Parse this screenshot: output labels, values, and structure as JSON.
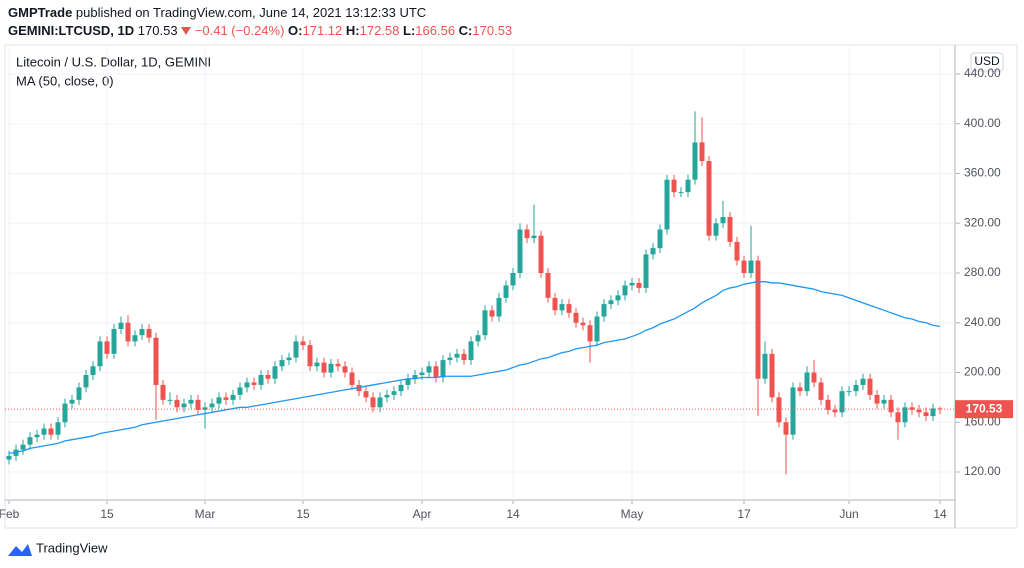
{
  "header": {
    "author": "GMPTrade",
    "published": "published on TradingView.com, June 14, 2021 13:12:33 UTC",
    "symbol": "GEMINI:LTCUSD, 1D",
    "change": "−0.41 (−0.24%)",
    "ohlc_labels": [
      "O:",
      "H:",
      "L:",
      "C:"
    ]
  },
  "footer": {
    "brand": "TradingView"
  },
  "chart_data": {
    "type": "candlestick",
    "title": "Litecoin / U.S. Dollar, 1D, GEMINI",
    "currency": "USD",
    "up_color": "#26a69a",
    "down_color": "#ef5350",
    "grid": true,
    "ylim": [
      97.5,
      463.3
    ],
    "yticks": [
      {
        "value": 120,
        "label": "120.00"
      },
      {
        "value": 160,
        "label": "160.00"
      },
      {
        "value": 200,
        "label": "200.00"
      },
      {
        "value": 240,
        "label": "240.00"
      },
      {
        "value": 280,
        "label": "280.00"
      },
      {
        "value": 320,
        "label": "320.00"
      },
      {
        "value": 360,
        "label": "360.00"
      },
      {
        "value": 400,
        "label": "400.00"
      },
      {
        "value": 440,
        "label": "440.00"
      }
    ],
    "xticks": [
      {
        "value": "2021-02-01",
        "label": "Feb"
      },
      {
        "value": "2021-02-15",
        "label": "15"
      },
      {
        "value": "2021-03-01",
        "label": "Mar"
      },
      {
        "value": "2021-03-15",
        "label": "15"
      },
      {
        "value": "2021-04-01",
        "label": "Apr"
      },
      {
        "value": "2021-04-14",
        "label": "14"
      },
      {
        "value": "2021-05-01",
        "label": "May"
      },
      {
        "value": "2021-05-17",
        "label": "17"
      },
      {
        "value": "2021-06-01",
        "label": "Jun"
      },
      {
        "value": "2021-06-14",
        "label": "14"
      }
    ],
    "categories": [
      "2021-02-01",
      "2021-02-02",
      "2021-02-03",
      "2021-02-04",
      "2021-02-05",
      "2021-02-06",
      "2021-02-07",
      "2021-02-08",
      "2021-02-09",
      "2021-02-10",
      "2021-02-11",
      "2021-02-12",
      "2021-02-13",
      "2021-02-14",
      "2021-02-15",
      "2021-02-16",
      "2021-02-17",
      "2021-02-18",
      "2021-02-19",
      "2021-02-20",
      "2021-02-21",
      "2021-02-22",
      "2021-02-23",
      "2021-02-24",
      "2021-02-25",
      "2021-02-26",
      "2021-02-27",
      "2021-02-28",
      "2021-03-01",
      "2021-03-02",
      "2021-03-03",
      "2021-03-04",
      "2021-03-05",
      "2021-03-06",
      "2021-03-07",
      "2021-03-08",
      "2021-03-09",
      "2021-03-10",
      "2021-03-11",
      "2021-03-12",
      "2021-03-13",
      "2021-03-14",
      "2021-03-15",
      "2021-03-16",
      "2021-03-17",
      "2021-03-18",
      "2021-03-19",
      "2021-03-20",
      "2021-03-21",
      "2021-03-22",
      "2021-03-23",
      "2021-03-24",
      "2021-03-25",
      "2021-03-26",
      "2021-03-27",
      "2021-03-28",
      "2021-03-29",
      "2021-03-30",
      "2021-03-31",
      "2021-04-01",
      "2021-04-02",
      "2021-04-03",
      "2021-04-04",
      "2021-04-05",
      "2021-04-06",
      "2021-04-07",
      "2021-04-08",
      "2021-04-09",
      "2021-04-10",
      "2021-04-11",
      "2021-04-12",
      "2021-04-13",
      "2021-04-14",
      "2021-04-15",
      "2021-04-16",
      "2021-04-17",
      "2021-04-18",
      "2021-04-19",
      "2021-04-20",
      "2021-04-21",
      "2021-04-22",
      "2021-04-23",
      "2021-04-24",
      "2021-04-25",
      "2021-04-26",
      "2021-04-27",
      "2021-04-28",
      "2021-04-29",
      "2021-04-30",
      "2021-05-01",
      "2021-05-02",
      "2021-05-03",
      "2021-05-04",
      "2021-05-05",
      "2021-05-06",
      "2021-05-07",
      "2021-05-08",
      "2021-05-09",
      "2021-05-10",
      "2021-05-11",
      "2021-05-12",
      "2021-05-13",
      "2021-05-14",
      "2021-05-15",
      "2021-05-16",
      "2021-05-17",
      "2021-05-18",
      "2021-05-19",
      "2021-05-20",
      "2021-05-21",
      "2021-05-22",
      "2021-05-23",
      "2021-05-24",
      "2021-05-25",
      "2021-05-26",
      "2021-05-27",
      "2021-05-28",
      "2021-05-29",
      "2021-05-30",
      "2021-05-31",
      "2021-06-01",
      "2021-06-02",
      "2021-06-03",
      "2021-06-04",
      "2021-06-05",
      "2021-06-06",
      "2021-06-07",
      "2021-06-08",
      "2021-06-09",
      "2021-06-10",
      "2021-06-11",
      "2021-06-12",
      "2021-06-13",
      "2021-06-14"
    ],
    "open": [
      130,
      133,
      138,
      142,
      148,
      150,
      155,
      150,
      160,
      175,
      178,
      188,
      198,
      205,
      225,
      215,
      235,
      240,
      225,
      230,
      235,
      228,
      190,
      178,
      178,
      172,
      175,
      178,
      170,
      172,
      175,
      180,
      178,
      182,
      188,
      192,
      190,
      198,
      195,
      205,
      210,
      212,
      225,
      222,
      205,
      208,
      200,
      207,
      205,
      200,
      190,
      185,
      180,
      172,
      180,
      182,
      185,
      190,
      195,
      198,
      200,
      205,
      196,
      210,
      212,
      215,
      210,
      225,
      230,
      250,
      245,
      260,
      270,
      280,
      315,
      308,
      310,
      280,
      260,
      250,
      255,
      248,
      240,
      238,
      225,
      245,
      255,
      258,
      262,
      270,
      272,
      268,
      295,
      300,
      315,
      355,
      345,
      345,
      355,
      385,
      370,
      310,
      320,
      325,
      305,
      290,
      280,
      290,
      195,
      215,
      180,
      160,
      150,
      188,
      185,
      200,
      192,
      178,
      170,
      168,
      185,
      185,
      190,
      195,
      182,
      175,
      178,
      168,
      160,
      172,
      170,
      168,
      165,
      171.12
    ],
    "high": [
      137,
      142,
      146,
      152,
      154,
      159,
      159,
      164,
      179,
      182,
      192,
      202,
      209,
      229,
      229,
      239,
      245,
      246,
      234,
      239,
      239,
      232,
      194,
      184,
      182,
      179,
      182,
      182,
      176,
      179,
      184,
      184,
      186,
      192,
      196,
      196,
      202,
      202,
      209,
      214,
      216,
      230,
      229,
      226,
      212,
      212,
      211,
      211,
      209,
      204,
      194,
      189,
      184,
      184,
      186,
      189,
      194,
      199,
      202,
      204,
      209,
      209,
      214,
      216,
      219,
      219,
      229,
      234,
      254,
      254,
      264,
      274,
      284,
      320,
      319,
      335,
      314,
      284,
      264,
      259,
      259,
      252,
      244,
      242,
      249,
      259,
      262,
      266,
      274,
      276,
      276,
      299,
      304,
      319,
      359,
      359,
      349,
      359,
      410,
      405,
      374,
      324,
      338,
      329,
      309,
      294,
      318,
      294,
      225,
      219,
      184,
      164,
      192,
      192,
      205,
      210,
      196,
      182,
      174,
      189,
      189,
      194,
      199,
      199,
      186,
      182,
      182,
      172,
      176,
      176,
      174,
      172,
      175,
      172.58
    ],
    "low": [
      126,
      129,
      134,
      138,
      144,
      146,
      146,
      146,
      156,
      171,
      174,
      184,
      194,
      201,
      211,
      211,
      231,
      221,
      221,
      226,
      224,
      162,
      174,
      174,
      168,
      168,
      171,
      166,
      155,
      168,
      171,
      174,
      174,
      178,
      184,
      186,
      186,
      191,
      191,
      201,
      206,
      208,
      218,
      201,
      201,
      196,
      196,
      201,
      196,
      186,
      181,
      176,
      168,
      168,
      176,
      178,
      181,
      186,
      191,
      194,
      196,
      192,
      192,
      206,
      208,
      206,
      206,
      221,
      226,
      241,
      241,
      256,
      266,
      276,
      304,
      304,
      276,
      256,
      246,
      246,
      244,
      236,
      234,
      208,
      221,
      241,
      251,
      254,
      258,
      266,
      264,
      264,
      291,
      296,
      311,
      341,
      341,
      341,
      351,
      366,
      306,
      306,
      316,
      301,
      286,
      276,
      276,
      165,
      191,
      176,
      156,
      118,
      146,
      181,
      181,
      188,
      174,
      166,
      164,
      164,
      181,
      181,
      186,
      178,
      171,
      171,
      164,
      146,
      156,
      166,
      164,
      161,
      161,
      166.56
    ],
    "close": [
      133,
      138,
      142,
      148,
      150,
      155,
      150,
      160,
      175,
      178,
      188,
      198,
      205,
      225,
      215,
      235,
      240,
      225,
      230,
      235,
      228,
      190,
      178,
      178,
      172,
      175,
      178,
      170,
      172,
      175,
      180,
      178,
      182,
      188,
      192,
      190,
      198,
      195,
      205,
      210,
      212,
      225,
      222,
      205,
      208,
      200,
      207,
      205,
      200,
      190,
      185,
      180,
      172,
      180,
      182,
      185,
      190,
      195,
      198,
      200,
      205,
      196,
      210,
      212,
      215,
      210,
      225,
      230,
      250,
      245,
      260,
      270,
      280,
      315,
      308,
      310,
      280,
      260,
      250,
      255,
      248,
      240,
      238,
      225,
      245,
      255,
      258,
      262,
      270,
      272,
      268,
      295,
      300,
      315,
      355,
      345,
      345,
      355,
      385,
      370,
      310,
      320,
      325,
      305,
      290,
      280,
      290,
      195,
      215,
      180,
      160,
      150,
      188,
      185,
      200,
      192,
      178,
      170,
      168,
      185,
      185,
      190,
      195,
      182,
      175,
      178,
      168,
      160,
      172,
      170,
      168,
      165,
      171.12,
      170.53
    ],
    "ma": {
      "name": "MA (50, close, 0)",
      "color": "#2196f3",
      "values": [
        135,
        136,
        137,
        139,
        140,
        141,
        142,
        143,
        145,
        146,
        147,
        148,
        149,
        151,
        152,
        153,
        154,
        155,
        156,
        158,
        159,
        160,
        161,
        162,
        163,
        164,
        165,
        166,
        167,
        168,
        169,
        170,
        171,
        172,
        172,
        173,
        174,
        175,
        176,
        177,
        178,
        179,
        180,
        181,
        182,
        183,
        184,
        185,
        186,
        187,
        188,
        189,
        190,
        191,
        192,
        193,
        194,
        195,
        195,
        196,
        196,
        196,
        197,
        197,
        197,
        197,
        197,
        198,
        199,
        200,
        201,
        202,
        204,
        206,
        207,
        209,
        211,
        212,
        214,
        216,
        217,
        219,
        220,
        221,
        222,
        224,
        225,
        226,
        227,
        229,
        231,
        234,
        236,
        239,
        241,
        243,
        246,
        249,
        252,
        256,
        259,
        262,
        266,
        268,
        269,
        271,
        272,
        273,
        273,
        272,
        272,
        271,
        270,
        269,
        268,
        267,
        265,
        264,
        263,
        262,
        260,
        258,
        256,
        254,
        252,
        250,
        248,
        246,
        244,
        243,
        241,
        240,
        238,
        237
      ]
    }
  }
}
